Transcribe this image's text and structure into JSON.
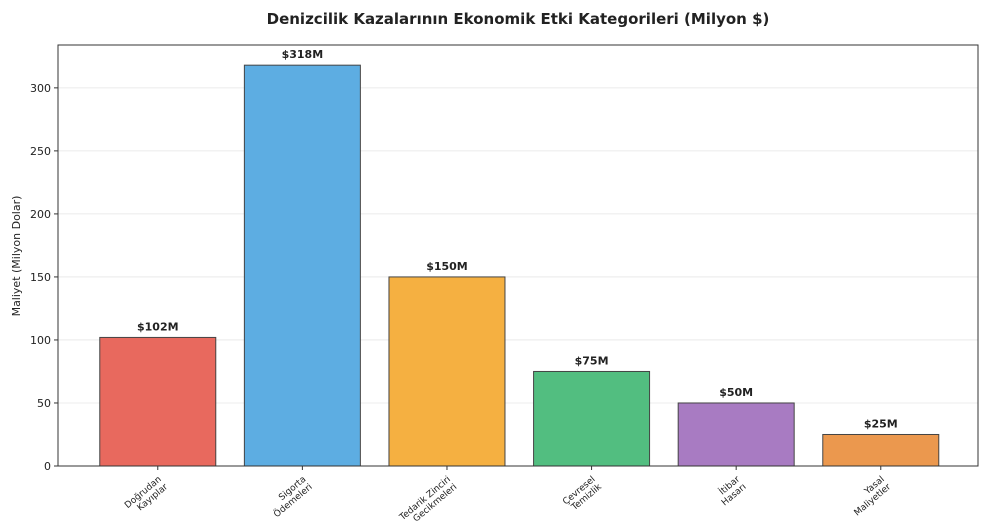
{
  "chart_data": {
    "type": "bar",
    "title": "Denizcilik Kazalarının Ekonomik Etki Kategorileri (Milyon $)",
    "y_label": "Maliyet (Milyon Dolar)",
    "categories": [
      "Doğrudan\nKayıplar",
      "Sigorta\nÖdemeleri",
      "Tedarik Zinciri\nGecikmeleri",
      "Çevresel\nTemizlik",
      "İtibar\nHasarı",
      "Yasal\nMaliyetler"
    ],
    "values": [
      102,
      318,
      150,
      75,
      50,
      25
    ],
    "value_labels": [
      "$102M",
      "$318M",
      "$150M",
      "$75M",
      "$50M",
      "$25M"
    ],
    "colors": [
      "#e8695e",
      "#5dade2",
      "#f5b041",
      "#52be80",
      "#a87bc2",
      "#eb984e"
    ],
    "ylim": [
      0,
      334
    ],
    "yticks": [
      0,
      50,
      100,
      150,
      200,
      250,
      300
    ],
    "grid": true
  }
}
